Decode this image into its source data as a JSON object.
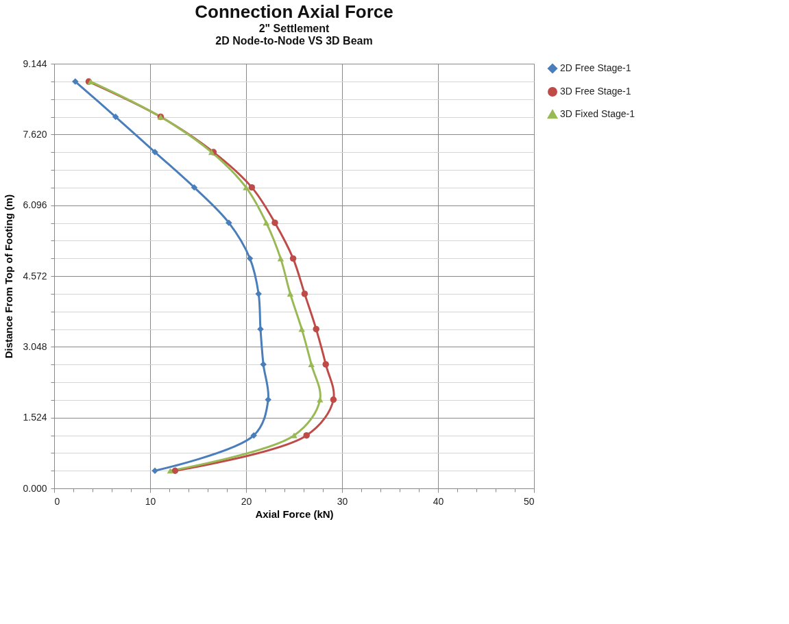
{
  "chart_data": {
    "type": "line",
    "title": "Connection Axial Force",
    "subtitle": "2\" Settlement\n2D Node-to-Node VS 3D Beam",
    "xlabel": "Axial Force (kN)",
    "ylabel": "Distance From Top of Footing (m)",
    "xlim": [
      0,
      50
    ],
    "ylim": [
      0,
      9.144
    ],
    "xticks": [
      0,
      {
        "value": 2,
        "label": null
      },
      {
        "value": 4,
        "label": null
      },
      {
        "value": 6,
        "label": null
      },
      {
        "value": 8,
        "label": null
      },
      10,
      {
        "value": 12,
        "label": null
      },
      {
        "value": 14,
        "label": null
      },
      {
        "value": 16,
        "label": null
      },
      {
        "value": 18,
        "label": null
      },
      20,
      {
        "value": 22,
        "label": null
      },
      {
        "value": 24,
        "label": null
      },
      {
        "value": 26,
        "label": null
      },
      {
        "value": 28,
        "label": null
      },
      30,
      {
        "value": 32,
        "label": null
      },
      {
        "value": 34,
        "label": null
      },
      {
        "value": 36,
        "label": null
      },
      {
        "value": 38,
        "label": null
      },
      40,
      {
        "value": 42,
        "label": null
      },
      {
        "value": 44,
        "label": null
      },
      {
        "value": 46,
        "label": null
      },
      {
        "value": 48,
        "label": null
      },
      50
    ],
    "yticks": [
      {
        "value": 0,
        "label": "0.000"
      },
      {
        "value": 0.381,
        "label": null
      },
      {
        "value": 0.762,
        "label": null
      },
      {
        "value": 1.143,
        "label": null
      },
      1.524,
      {
        "value": 1.905,
        "label": null
      },
      {
        "value": 2.286,
        "label": null
      },
      {
        "value": 2.667,
        "label": null
      },
      3.048,
      {
        "value": 3.429,
        "label": null
      },
      {
        "value": 3.81,
        "label": null
      },
      {
        "value": 4.191,
        "label": null
      },
      4.572,
      {
        "value": 4.953,
        "label": null
      },
      {
        "value": 5.334,
        "label": null
      },
      {
        "value": 5.715,
        "label": null
      },
      6.096,
      {
        "value": 6.477,
        "label": null
      },
      {
        "value": 6.858,
        "label": null
      },
      {
        "value": 7.239,
        "label": null
      },
      {
        "value": 7.62,
        "label": "7.620"
      },
      {
        "value": 8.001,
        "label": null
      },
      {
        "value": 8.382,
        "label": null
      },
      {
        "value": 8.763,
        "label": null
      },
      9.144
    ],
    "grid": true,
    "legend": "right",
    "line_style": "solid",
    "series": [
      {
        "name": "2D Free Stage-1",
        "color": "#4a7ebb",
        "marker": "diamond",
        "x": [
          2.2,
          6.4,
          10.5,
          14.6,
          18.2,
          20.4,
          21.3,
          21.5,
          21.8,
          22.3,
          20.8,
          10.5
        ],
        "values": [
          8.76,
          8.0,
          7.24,
          6.48,
          5.72,
          4.95,
          4.19,
          3.43,
          2.67,
          1.91,
          1.14,
          0.38
        ]
      },
      {
        "name": "3D Free Stage-1",
        "color": "#be4b48",
        "marker": "circle",
        "x": [
          3.6,
          11.1,
          16.6,
          20.6,
          23.0,
          24.9,
          26.1,
          27.3,
          28.3,
          29.1,
          26.3,
          12.6
        ],
        "values": [
          8.76,
          8.0,
          7.24,
          6.48,
          5.72,
          4.95,
          4.19,
          3.43,
          2.67,
          1.91,
          1.14,
          0.38
        ]
      },
      {
        "name": "3D Fixed Stage-1",
        "color": "#98b954",
        "marker": "triangle",
        "x": [
          3.8,
          11.1,
          16.4,
          20.0,
          22.1,
          23.6,
          24.6,
          25.8,
          26.8,
          27.7,
          25.0,
          12.1
        ],
        "values": [
          8.76,
          8.0,
          7.24,
          6.48,
          5.72,
          4.95,
          4.19,
          3.43,
          2.67,
          1.91,
          1.14,
          0.38
        ]
      }
    ]
  }
}
